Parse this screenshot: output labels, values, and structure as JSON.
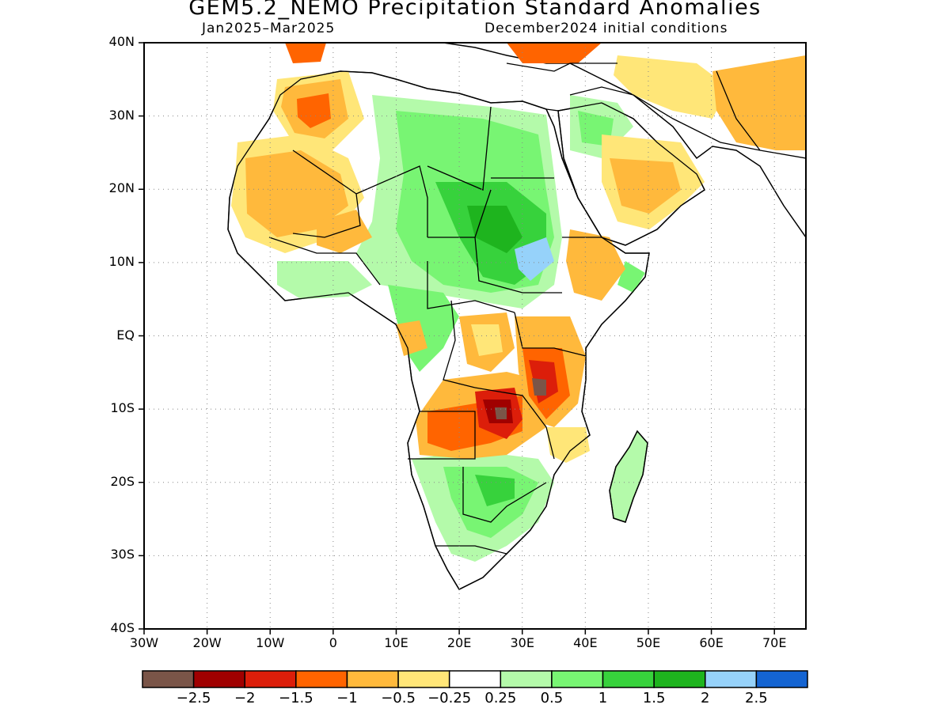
{
  "title": "GEM5.2_NEMO Precipitation Standard Anomalies",
  "period": "Jan2025–Mar2025",
  "init": "December2024 initial conditions",
  "map": {
    "lon_range": [
      -30,
      75
    ],
    "lat_range": [
      -40,
      40
    ],
    "lat_ticks": [
      {
        "value": 40,
        "label": "40N"
      },
      {
        "value": 30,
        "label": "30N"
      },
      {
        "value": 20,
        "label": "20N"
      },
      {
        "value": 10,
        "label": "10N"
      },
      {
        "value": 0,
        "label": "EQ"
      },
      {
        "value": -10,
        "label": "10S"
      },
      {
        "value": -20,
        "label": "20S"
      },
      {
        "value": -30,
        "label": "30S"
      },
      {
        "value": -40,
        "label": "40S"
      }
    ],
    "lon_ticks": [
      {
        "value": -30,
        "label": "30W"
      },
      {
        "value": -20,
        "label": "20W"
      },
      {
        "value": -10,
        "label": "10W"
      },
      {
        "value": 0,
        "label": "0"
      },
      {
        "value": 10,
        "label": "10E"
      },
      {
        "value": 20,
        "label": "20E"
      },
      {
        "value": 30,
        "label": "30E"
      },
      {
        "value": 40,
        "label": "40E"
      },
      {
        "value": 50,
        "label": "50E"
      },
      {
        "value": 60,
        "label": "60E"
      },
      {
        "value": 70,
        "label": "70E"
      }
    ],
    "grid": "dotted"
  },
  "colorbar": {
    "colors": [
      "#7a5548",
      "#a00000",
      "#dc1e0a",
      "#ff6400",
      "#ffb93c",
      "#ffe678",
      "#ffffff",
      "#b4faaa",
      "#78f573",
      "#37d23c",
      "#1eb41e",
      "#96d2fa",
      "#1464d2"
    ],
    "labels": [
      "−2.5",
      "−2",
      "−1.5",
      "−1",
      "−0.5",
      "−0.25",
      "0.25",
      "0.5",
      "1",
      "1.5",
      "2",
      "2.5"
    ]
  }
}
